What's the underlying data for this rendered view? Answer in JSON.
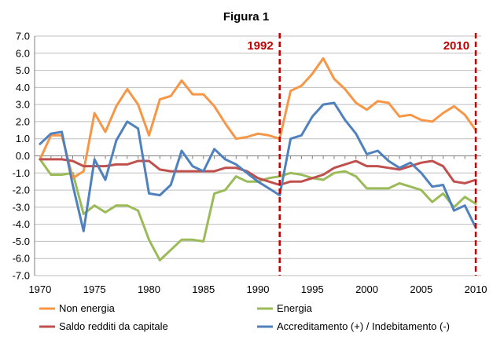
{
  "chart_data": {
    "type": "line",
    "title": "Figura 1",
    "xlabel": "",
    "ylabel": "",
    "x": [
      1970,
      1971,
      1972,
      1973,
      1974,
      1975,
      1976,
      1977,
      1978,
      1979,
      1980,
      1981,
      1982,
      1983,
      1984,
      1985,
      1986,
      1987,
      1988,
      1989,
      1990,
      1991,
      1992,
      1993,
      1994,
      1995,
      1996,
      1997,
      1998,
      1999,
      2000,
      2001,
      2002,
      2003,
      2004,
      2005,
      2006,
      2007,
      2008,
      2009,
      2010
    ],
    "xticks": [
      1970,
      1975,
      1980,
      1985,
      1990,
      1995,
      2000,
      2005,
      2010
    ],
    "xticklabels": [
      "1970",
      "1975",
      "1980",
      "1985",
      "1990",
      "1995",
      "2000",
      "2005",
      "2010"
    ],
    "xlim": [
      1969.5,
      2010.5
    ],
    "ylim": [
      -7.0,
      7.0
    ],
    "yticks": [
      -7,
      -6,
      -5,
      -4,
      -3,
      -2,
      -1,
      0,
      1,
      2,
      3,
      4,
      5,
      6,
      7
    ],
    "yticklabels": [
      "-7.0",
      "-6.0",
      "-5.0",
      "-4.0",
      "-3.0",
      "-2.0",
      "-1.0",
      "0.0",
      "1.0",
      "2.0",
      "3.0",
      "4.0",
      "5.0",
      "6.0",
      "7.0"
    ],
    "grid": "horizontal",
    "legend": "bottom",
    "series": [
      {
        "name": "Non energia",
        "color": "#F79646",
        "values": [
          -0.2,
          1.2,
          1.2,
          -1.3,
          -0.9,
          2.5,
          1.4,
          2.9,
          3.9,
          3.0,
          1.2,
          3.3,
          3.5,
          4.4,
          3.6,
          3.6,
          2.9,
          1.9,
          1.0,
          1.1,
          1.3,
          1.2,
          1.0,
          3.8,
          4.1,
          4.8,
          5.7,
          4.5,
          3.9,
          3.1,
          2.7,
          3.2,
          3.1,
          2.3,
          2.4,
          2.1,
          2.0,
          2.5,
          2.9,
          2.4,
          1.5
        ]
      },
      {
        "name": "Energia",
        "color": "#9BBB59",
        "values": [
          -0.2,
          -1.1,
          -1.1,
          -1.0,
          -3.4,
          -2.9,
          -3.3,
          -2.9,
          -2.9,
          -3.2,
          -4.9,
          -6.1,
          -5.5,
          -4.9,
          -4.9,
          -5.0,
          -2.2,
          -2.0,
          -1.2,
          -1.5,
          -1.5,
          -1.3,
          -1.2,
          -1.0,
          -1.1,
          -1.3,
          -1.4,
          -1.0,
          -0.9,
          -1.2,
          -1.9,
          -1.9,
          -1.9,
          -1.6,
          -1.8,
          -2.0,
          -2.7,
          -2.2,
          -3.0,
          -2.4,
          -2.8
        ]
      },
      {
        "name": "Saldo redditi da capitale",
        "color": "#C0504D",
        "values": [
          -0.2,
          -0.2,
          -0.2,
          -0.3,
          -0.6,
          -0.6,
          -0.6,
          -0.5,
          -0.5,
          -0.3,
          -0.3,
          -0.8,
          -0.9,
          -0.9,
          -0.9,
          -0.9,
          -0.9,
          -0.7,
          -0.7,
          -0.9,
          -1.3,
          -1.5,
          -1.7,
          -1.5,
          -1.5,
          -1.3,
          -1.1,
          -0.7,
          -0.5,
          -0.3,
          -0.6,
          -0.6,
          -0.7,
          -0.8,
          -0.6,
          -0.4,
          -0.3,
          -0.6,
          -1.5,
          -1.6,
          -1.4
        ]
      },
      {
        "name": "Accreditamento (+) / Indebitamento (-)",
        "color": "#4F81BD",
        "values": [
          0.7,
          1.3,
          1.4,
          -1.7,
          -4.4,
          -0.2,
          -1.4,
          0.9,
          2.0,
          1.6,
          -2.2,
          -2.3,
          -1.7,
          0.3,
          -0.6,
          -0.9,
          0.4,
          -0.2,
          -0.5,
          -1.0,
          -1.5,
          -1.9,
          -2.3,
          1.0,
          1.2,
          2.3,
          3.0,
          3.1,
          2.1,
          1.3,
          0.1,
          0.3,
          -0.3,
          -0.7,
          -0.4,
          -1.0,
          -1.8,
          -1.7,
          -3.2,
          -2.9,
          -4.2
        ]
      }
    ],
    "annotations": [
      {
        "label": "1992",
        "x": 1992,
        "color": "#C00000"
      },
      {
        "label": "2010",
        "x": 2010,
        "color": "#C00000"
      }
    ]
  }
}
